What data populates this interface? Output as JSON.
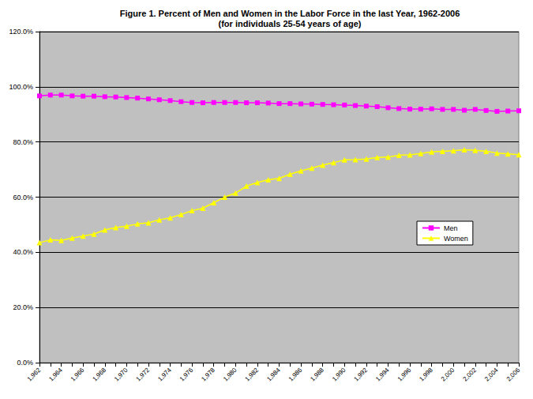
{
  "chart_data": {
    "type": "line",
    "title": "Figure 1. Percent of Men and Women in the Labor Force in the last Year, 1962-2006",
    "subtitle": "(for individuals 25-54 years of age)",
    "categories": [
      "1,962",
      null,
      "1,964",
      null,
      "1,966",
      null,
      "1,968",
      null,
      "1,970",
      null,
      "1,972",
      null,
      "1,974",
      null,
      "1,976",
      null,
      "1,978",
      null,
      "1,980",
      null,
      "1,982",
      null,
      "1,984",
      null,
      "1,986",
      null,
      "1,988",
      null,
      "1,990",
      null,
      "1,992",
      null,
      "1,994",
      null,
      "1,996",
      null,
      "1,998",
      null,
      "2,000",
      null,
      "2,002",
      null,
      "2,004",
      null,
      "2,006"
    ],
    "series": [
      {
        "name": "Men",
        "color": "#ff00ff",
        "marker": "square",
        "line_style": "solid",
        "values": [
          96.7,
          97.0,
          97.0,
          96.7,
          96.6,
          96.6,
          96.4,
          96.3,
          96.1,
          95.9,
          95.6,
          95.3,
          95.0,
          94.6,
          94.3,
          94.2,
          94.3,
          94.3,
          94.3,
          94.2,
          94.2,
          94.1,
          93.9,
          93.9,
          93.8,
          93.7,
          93.6,
          93.5,
          93.4,
          93.2,
          93.0,
          92.8,
          92.4,
          92.1,
          91.9,
          91.9,
          92.0,
          91.8,
          91.8,
          91.5,
          91.8,
          91.4,
          91.1,
          91.2,
          91.3
        ]
      },
      {
        "name": "Women",
        "color": "#ffff00",
        "marker": "triangle",
        "line_style": "solid",
        "values": [
          43.5,
          44.5,
          44.3,
          45.2,
          45.9,
          46.6,
          48.1,
          49.0,
          49.5,
          50.3,
          50.7,
          51.8,
          52.5,
          53.7,
          55.1,
          56.0,
          58.0,
          60.0,
          61.5,
          64.0,
          65.3,
          66.3,
          66.8,
          68.3,
          69.5,
          70.5,
          71.6,
          72.5,
          73.5,
          73.6,
          73.8,
          74.4,
          74.5,
          75.2,
          75.3,
          75.8,
          76.4,
          76.6,
          76.8,
          77.2,
          77.0,
          76.6,
          76.0,
          75.7,
          75.4
        ]
      }
    ],
    "ylim": [
      0,
      120
    ],
    "yticks": [
      {
        "value": 0,
        "label": "0.0%"
      },
      {
        "value": 20,
        "label": "20.0%"
      },
      {
        "value": 40,
        "label": "40.0%"
      },
      {
        "value": 60,
        "label": "60.0%"
      },
      {
        "value": 80,
        "label": "80.0%"
      },
      {
        "value": 100,
        "label": "100.0%"
      },
      {
        "value": 120,
        "label": "120.0%"
      }
    ],
    "grid": true,
    "legend": "right"
  }
}
